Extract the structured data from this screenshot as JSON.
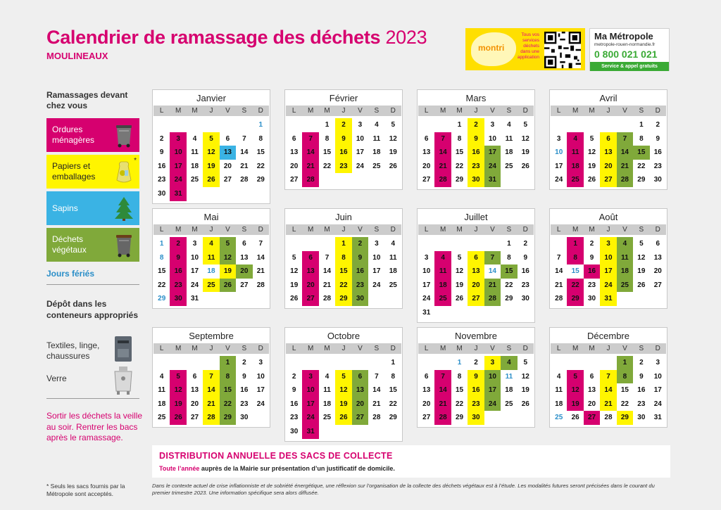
{
  "header": {
    "title": "Calendrier de ramassage des déchets",
    "year": "2023",
    "commune": "MOULINEAUX"
  },
  "montri": {
    "logo": "montri",
    "tagline": "Tous vos services déchets dans une application",
    "qr_icon": "qr-code-icon"
  },
  "metropole": {
    "name": "Ma Métropole",
    "url": "metropole-rouen-normandie.fr",
    "phone": "0 800 021 021",
    "service": "Service & appel gratuits"
  },
  "legend": {
    "heading": "Ramassages devant chez vous",
    "items": [
      {
        "label": "Ordures ménagères",
        "icon": "trash-bin-icon",
        "color": "#d6006f"
      },
      {
        "label": "Papiers et emballages",
        "icon": "recycling-bag-icon",
        "color": "#fff500",
        "note": "*"
      },
      {
        "label": "Sapins",
        "icon": "fir-tree-icon",
        "color": "#3ab3e4"
      },
      {
        "label": "Déchets végétaux",
        "icon": "green-bin-icon",
        "color": "#80a93a"
      }
    ],
    "holidays": "Jours fériés",
    "depot_heading": "Dépôt dans les conteneurs appropriés",
    "depot_items": [
      {
        "label": "Textiles, linge, chaussures",
        "icon": "textile-container-icon"
      },
      {
        "label": "Verre",
        "icon": "glass-container-icon"
      }
    ],
    "reminder": "Sortir les déchets la veille au soir. Rentrer les bacs après le ramassage.",
    "footnote": "* Seuls les sacs fournis par la Métropole sont acceptés."
  },
  "weekdays": [
    "L",
    "M",
    "M",
    "J",
    "V",
    "S",
    "D"
  ],
  "months": [
    {
      "name": "Janvier",
      "offset": 6,
      "days": 31,
      "om": [
        3,
        10,
        17,
        24,
        31
      ],
      "pa": [
        5,
        12,
        19,
        26
      ],
      "dv": [],
      "sa": [
        13
      ],
      "holidays": [
        1
      ]
    },
    {
      "name": "Février",
      "offset": 2,
      "days": 28,
      "om": [
        7,
        14,
        21,
        28
      ],
      "pa": [
        2,
        9,
        16,
        23
      ],
      "dv": [],
      "sa": [],
      "holidays": []
    },
    {
      "name": "Mars",
      "offset": 2,
      "days": 31,
      "om": [
        7,
        14,
        21,
        28
      ],
      "pa": [
        2,
        9,
        16,
        23,
        30
      ],
      "dv": [
        17,
        24,
        31
      ],
      "sa": [],
      "holidays": []
    },
    {
      "name": "Avril",
      "offset": 5,
      "days": 30,
      "om": [
        4,
        11,
        18,
        25
      ],
      "pa": [
        6,
        13,
        20,
        27
      ],
      "dv": [
        7,
        14,
        15,
        21,
        28
      ],
      "sa": [],
      "holidays": [
        10
      ]
    },
    {
      "name": "Mai",
      "offset": 0,
      "days": 31,
      "om": [
        2,
        9,
        16,
        23,
        30
      ],
      "pa": [
        4,
        11,
        19,
        25
      ],
      "dv": [
        5,
        12,
        20,
        26
      ],
      "sa": [],
      "holidays": [
        1,
        8,
        18,
        29
      ]
    },
    {
      "name": "Juin",
      "offset": 3,
      "days": 30,
      "om": [
        6,
        13,
        20,
        27
      ],
      "pa": [
        1,
        8,
        15,
        22,
        29
      ],
      "dv": [
        2,
        9,
        16,
        23,
        30
      ],
      "sa": [],
      "holidays": []
    },
    {
      "name": "Juillet",
      "offset": 5,
      "days": 31,
      "om": [
        4,
        11,
        18,
        25
      ],
      "pa": [
        6,
        13,
        20,
        27
      ],
      "dv": [
        7,
        15,
        21,
        28
      ],
      "sa": [],
      "holidays": [
        14
      ]
    },
    {
      "name": "Août",
      "offset": 1,
      "days": 31,
      "om": [
        1,
        8,
        16,
        22,
        29
      ],
      "pa": [
        3,
        10,
        17,
        24,
        31
      ],
      "dv": [
        4,
        11,
        18,
        25
      ],
      "sa": [],
      "holidays": [
        15
      ]
    },
    {
      "name": "Septembre",
      "offset": 4,
      "days": 30,
      "om": [
        5,
        12,
        19,
        26
      ],
      "pa": [
        7,
        14,
        21,
        28
      ],
      "dv": [
        1,
        8,
        15,
        22,
        29
      ],
      "sa": [],
      "holidays": []
    },
    {
      "name": "Octobre",
      "offset": 6,
      "days": 31,
      "om": [
        3,
        10,
        17,
        24,
        31
      ],
      "pa": [
        5,
        12,
        19,
        26
      ],
      "dv": [
        6,
        13,
        20,
        27
      ],
      "sa": [],
      "holidays": []
    },
    {
      "name": "Novembre",
      "offset": 2,
      "days": 30,
      "om": [
        7,
        14,
        21,
        28
      ],
      "pa": [
        3,
        9,
        16,
        23,
        30
      ],
      "dv": [
        4,
        10,
        17,
        24
      ],
      "sa": [],
      "holidays": [
        1,
        11
      ]
    },
    {
      "name": "Décembre",
      "offset": 4,
      "days": 31,
      "om": [
        5,
        12,
        19,
        27
      ],
      "pa": [
        7,
        14,
        21,
        29
      ],
      "dv": [
        1,
        8
      ],
      "sa": [],
      "holidays": [
        25
      ]
    }
  ],
  "distribution": {
    "title": "DISTRIBUTION ANNUELLE DES SACS DE COLLECTE",
    "lead": "Toute l’année",
    "text": " auprès de la Mairie sur présentation d’un justificatif de domicile."
  },
  "disclaimer": "Dans le contexte actuel de crise inflationniste et de sobriété énergétique, une réflexion sur l’organisation de la collecte des déchets végétaux est à l’étude. Les modalités futures seront précisées dans le courant du premier trimestre 2023. Une information spécifique sera alors diffusée."
}
